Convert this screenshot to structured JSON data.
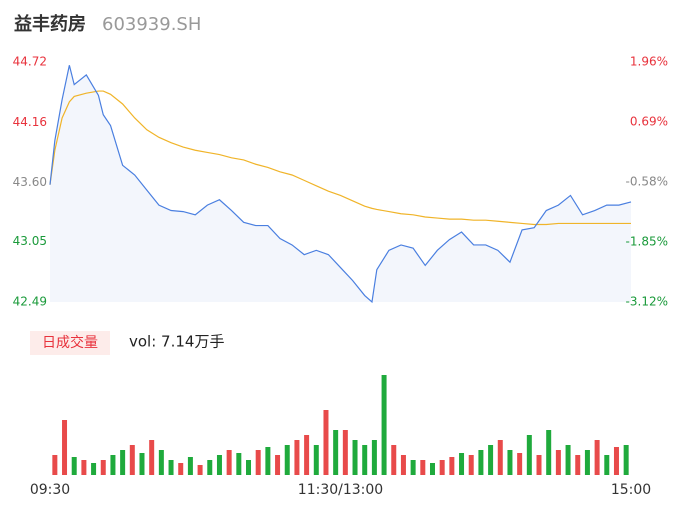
{
  "chart_data": {
    "type": "line",
    "title": "益丰药房",
    "subtitle": "603939.SH",
    "x": [
      0,
      2,
      5,
      8,
      10,
      15,
      20,
      22,
      25,
      30,
      35,
      40,
      45,
      50,
      55,
      60,
      65,
      70,
      75,
      80,
      85,
      90,
      95,
      100,
      105,
      110,
      115,
      120,
      125,
      130,
      133,
      135,
      140,
      145,
      150,
      155,
      160,
      165,
      170,
      175,
      180,
      185,
      190,
      195,
      200,
      205,
      210,
      215,
      220,
      225,
      230,
      235,
      240
    ],
    "xlim": [
      0,
      240
    ],
    "xticks": [
      {
        "value": 0,
        "label": "09:30"
      },
      {
        "value": 120,
        "label": "11:30/13:00"
      },
      {
        "value": 240,
        "label": "15:00"
      }
    ],
    "series": [
      {
        "color": "#4a7fe0",
        "values": [
          43.58,
          43.99,
          44.37,
          44.69,
          44.51,
          44.6,
          44.41,
          44.23,
          44.13,
          43.76,
          43.67,
          43.53,
          43.39,
          43.34,
          43.33,
          43.3,
          43.39,
          43.44,
          43.34,
          43.23,
          43.2,
          43.2,
          43.08,
          43.02,
          42.93,
          42.97,
          42.93,
          42.81,
          42.69,
          42.55,
          42.49,
          42.79,
          42.97,
          43.02,
          42.99,
          42.83,
          42.97,
          43.07,
          43.14,
          43.02,
          43.02,
          42.97,
          42.86,
          43.16,
          43.18,
          43.34,
          43.39,
          43.48,
          43.3,
          43.34,
          43.39,
          43.39,
          43.42
        ]
      },
      {
        "color": "#f0b429",
        "values": [
          43.58,
          43.9,
          44.2,
          44.35,
          44.4,
          44.43,
          44.45,
          44.45,
          44.42,
          44.33,
          44.2,
          44.09,
          44.02,
          43.97,
          43.93,
          43.9,
          43.88,
          43.86,
          43.83,
          43.81,
          43.77,
          43.74,
          43.7,
          43.67,
          43.62,
          43.57,
          43.52,
          43.48,
          43.43,
          43.38,
          43.36,
          43.35,
          43.33,
          43.31,
          43.3,
          43.28,
          43.27,
          43.26,
          43.26,
          43.25,
          43.25,
          43.24,
          43.23,
          43.22,
          43.21,
          43.21,
          43.22,
          43.22,
          43.22,
          43.22,
          43.22,
          43.22,
          43.22
        ]
      }
    ],
    "area_color": "#f3f6fc",
    "ylim": [
      42.49,
      44.72
    ],
    "yticks": [
      44.72,
      44.16,
      {
        "value": 43.6,
        "label": "43.60"
      },
      43.05,
      42.49
    ],
    "y2lim": [
      -3.12,
      1.96
    ],
    "y2ticks": [
      {
        "value": 1.96,
        "label": "1.96%"
      },
      {
        "value": 0.69,
        "label": "0.69%"
      },
      {
        "value": -0.58,
        "label": "-0.58%"
      },
      {
        "value": -1.85,
        "label": "-1.85%"
      },
      {
        "value": -3.12,
        "label": "-3.12%"
      }
    ],
    "tick_colors": [
      "#e8323c",
      "#e8323c",
      "#888888",
      "#1a9a3a",
      "#1a9a3a"
    ],
    "volume": {
      "label": "日成交量",
      "summary": "vol: 7.14万手",
      "ylim": [
        0,
        100
      ],
      "x": [
        2,
        6,
        10,
        14,
        18,
        22,
        26,
        30,
        34,
        38,
        42,
        46,
        50,
        54,
        58,
        62,
        66,
        70,
        74,
        78,
        82,
        86,
        90,
        94,
        98,
        102,
        106,
        110,
        114,
        118,
        122,
        126,
        130,
        134,
        138,
        142,
        146,
        150,
        154,
        158,
        162,
        166,
        170,
        174,
        178,
        182,
        186,
        190,
        194,
        198,
        202,
        206,
        210,
        214,
        218,
        222,
        226,
        230,
        234,
        238
      ],
      "values": [
        20,
        55,
        18,
        15,
        12,
        15,
        20,
        25,
        30,
        22,
        35,
        25,
        15,
        12,
        18,
        10,
        15,
        20,
        25,
        22,
        15,
        25,
        28,
        20,
        30,
        35,
        40,
        30,
        65,
        45,
        45,
        35,
        30,
        35,
        100,
        30,
        20,
        15,
        15,
        12,
        15,
        18,
        22,
        20,
        25,
        30,
        35,
        25,
        22,
        40,
        20,
        45,
        25,
        30,
        20,
        25,
        35,
        20,
        28,
        30
      ],
      "colors": [
        "#e84a4a",
        "#e84a4a",
        "#1faa3c",
        "#e84a4a",
        "#1faa3c",
        "#e84a4a",
        "#1faa3c",
        "#1faa3c",
        "#e84a4a",
        "#1faa3c",
        "#e84a4a",
        "#1faa3c",
        "#1faa3c",
        "#e84a4a",
        "#1faa3c",
        "#e84a4a",
        "#1faa3c",
        "#1faa3c",
        "#e84a4a",
        "#1faa3c",
        "#1faa3c",
        "#e84a4a",
        "#1faa3c",
        "#e84a4a",
        "#1faa3c",
        "#e84a4a",
        "#e84a4a",
        "#1faa3c",
        "#e84a4a",
        "#1faa3c",
        "#e84a4a",
        "#1faa3c",
        "#1faa3c",
        "#1faa3c",
        "#1faa3c",
        "#e84a4a",
        "#e84a4a",
        "#1faa3c",
        "#e84a4a",
        "#1faa3c",
        "#e84a4a",
        "#e84a4a",
        "#1faa3c",
        "#e84a4a",
        "#1faa3c",
        "#1faa3c",
        "#e84a4a",
        "#1faa3c",
        "#e84a4a",
        "#1faa3c",
        "#e84a4a",
        "#1faa3c",
        "#e84a4a",
        "#1faa3c",
        "#e84a4a",
        "#1faa3c",
        "#e84a4a",
        "#1faa3c",
        "#e84a4a",
        "#1faa3c"
      ]
    }
  }
}
